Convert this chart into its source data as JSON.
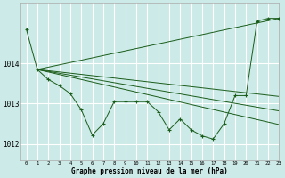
{
  "title": "Graphe pression niveau de la mer (hPa)",
  "bg_color": "#cceae7",
  "grid_color": "#ffffff",
  "line_color": "#1a5c1a",
  "marker_color": "#1a5c1a",
  "xlim": [
    -0.5,
    23
  ],
  "ylim": [
    1011.6,
    1015.5
  ],
  "yticks": [
    1012,
    1013,
    1014
  ],
  "xticks": [
    0,
    1,
    2,
    3,
    4,
    5,
    6,
    7,
    8,
    9,
    10,
    11,
    12,
    13,
    14,
    15,
    16,
    17,
    18,
    19,
    20,
    21,
    22,
    23
  ],
  "series": [
    {
      "x": [
        0,
        1,
        2,
        3,
        4,
        5,
        6,
        7,
        8,
        9,
        10,
        11,
        12,
        13,
        14,
        15,
        16,
        17,
        18,
        19,
        20,
        21,
        22,
        23
      ],
      "y": [
        1014.85,
        1013.85,
        1013.6,
        1013.45,
        1013.25,
        1012.85,
        1012.22,
        1012.5,
        1013.05,
        1013.05,
        1013.05,
        1013.05,
        1012.8,
        1012.35,
        1012.62,
        1012.35,
        1012.2,
        1012.12,
        1012.5,
        1013.2,
        1013.2,
        1015.05,
        1015.12,
        1015.12
      ],
      "has_markers": true
    },
    {
      "x": [
        1,
        23
      ],
      "y": [
        1013.85,
        1015.12
      ],
      "has_markers": false
    },
    {
      "x": [
        1,
        23
      ],
      "y": [
        1013.85,
        1013.18
      ],
      "has_markers": false
    },
    {
      "x": [
        1,
        23
      ],
      "y": [
        1013.85,
        1012.82
      ],
      "has_markers": false
    },
    {
      "x": [
        1,
        23
      ],
      "y": [
        1013.85,
        1012.48
      ],
      "has_markers": false
    }
  ]
}
